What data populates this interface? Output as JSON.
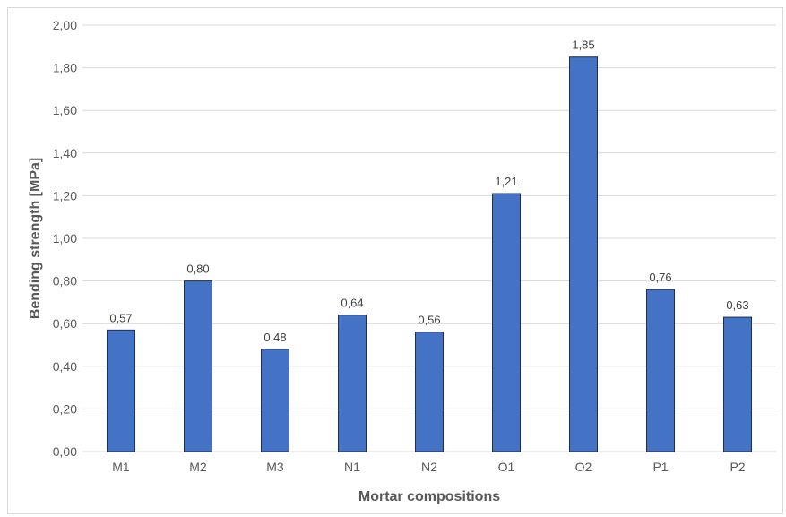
{
  "chart_data": {
    "type": "bar",
    "title": "",
    "xlabel": "Mortar compositions",
    "ylabel": "Bending strength [MPa]",
    "categories": [
      "M1",
      "M2",
      "M3",
      "N1",
      "N2",
      "O1",
      "O2",
      "P1",
      "P2"
    ],
    "values": [
      0.57,
      0.8,
      0.48,
      0.64,
      0.56,
      1.21,
      1.85,
      0.76,
      0.63
    ],
    "data_labels": [
      "0,57",
      "0,80",
      "0,48",
      "0,64",
      "0,56",
      "1,21",
      "1,85",
      "0,76",
      "0,63"
    ],
    "ylim": [
      0,
      2
    ],
    "yticks": [
      0,
      0.2,
      0.4,
      0.6,
      0.8,
      1.0,
      1.2,
      1.4,
      1.6,
      1.8,
      2.0
    ],
    "ytick_labels": [
      "0,00",
      "0,20",
      "0,40",
      "0,60",
      "0,80",
      "1,00",
      "1,20",
      "1,40",
      "1,60",
      "1,80",
      "2,00"
    ],
    "grid": true,
    "legend": "none",
    "bar_color": "#4472c4",
    "bar_edge_color": "#1f2d50",
    "grid_color": "#d9d9d9"
  }
}
